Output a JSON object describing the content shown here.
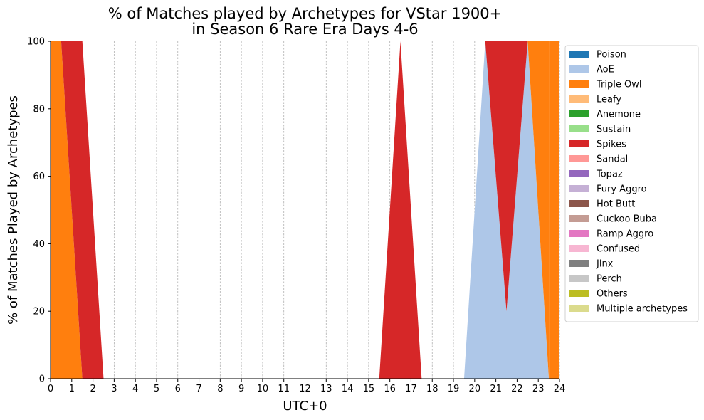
{
  "chart_data": {
    "type": "area",
    "stacked": true,
    "title": [
      "% of Matches played by Archetypes for VStar 1900+",
      "in Season 6 Rare Era Days 4-6"
    ],
    "xlabel": "UTC+0",
    "ylabel": "% of Matches Played by Archetypes",
    "xlim": [
      0,
      24
    ],
    "ylim": [
      0,
      100
    ],
    "x_ticks": [
      0,
      1,
      2,
      3,
      4,
      5,
      6,
      7,
      8,
      9,
      10,
      11,
      12,
      13,
      14,
      15,
      16,
      17,
      18,
      19,
      20,
      21,
      22,
      23,
      24
    ],
    "y_ticks": [
      0,
      20,
      40,
      60,
      80,
      100
    ],
    "grid": "vertical-dashed",
    "legend_position": "right",
    "x": [
      0.5,
      1.5,
      2.5,
      3.5,
      4.5,
      5.5,
      6.5,
      7.5,
      8.5,
      9.5,
      10.5,
      11.5,
      12.5,
      13.5,
      14.5,
      15.5,
      16.5,
      17.5,
      18.5,
      19.5,
      20.5,
      21.5,
      22.5,
      23.5
    ],
    "series": [
      {
        "name": "Poison",
        "color": "#1f77b4",
        "values": [
          0,
          0,
          0,
          0,
          0,
          0,
          0,
          0,
          0,
          0,
          0,
          0,
          0,
          0,
          0,
          0,
          0,
          0,
          0,
          0,
          0,
          0,
          0,
          0
        ]
      },
      {
        "name": "AoE",
        "color": "#aec7e8",
        "values": [
          0,
          0,
          0,
          0,
          0,
          0,
          0,
          0,
          0,
          0,
          0,
          0,
          0,
          0,
          0,
          0,
          0,
          0,
          0,
          0,
          100,
          20,
          100,
          0
        ]
      },
      {
        "name": "Triple Owl",
        "color": "#ff7f0e",
        "values": [
          100,
          0,
          0,
          0,
          0,
          0,
          0,
          0,
          0,
          0,
          0,
          0,
          0,
          0,
          0,
          0,
          0,
          0,
          0,
          0,
          0,
          0,
          0,
          100
        ]
      },
      {
        "name": "Leafy",
        "color": "#ffbb78",
        "values": [
          0,
          0,
          0,
          0,
          0,
          0,
          0,
          0,
          0,
          0,
          0,
          0,
          0,
          0,
          0,
          0,
          0,
          0,
          0,
          0,
          0,
          0,
          0,
          0
        ]
      },
      {
        "name": "Anemone",
        "color": "#2ca02c",
        "values": [
          0,
          0,
          0,
          0,
          0,
          0,
          0,
          0,
          0,
          0,
          0,
          0,
          0,
          0,
          0,
          0,
          0,
          0,
          0,
          0,
          0,
          0,
          0,
          0
        ]
      },
      {
        "name": "Sustain",
        "color": "#98df8a",
        "values": [
          0,
          0,
          0,
          0,
          0,
          0,
          0,
          0,
          0,
          0,
          0,
          0,
          0,
          0,
          0,
          0,
          0,
          0,
          0,
          0,
          0,
          0,
          0,
          0
        ]
      },
      {
        "name": "Spikes",
        "color": "#d62728",
        "values": [
          0,
          100,
          0,
          0,
          0,
          0,
          0,
          0,
          0,
          0,
          0,
          0,
          0,
          0,
          0,
          0,
          100,
          0,
          0,
          0,
          0,
          80,
          0,
          0
        ]
      },
      {
        "name": "Sandal",
        "color": "#ff9896",
        "values": [
          0,
          0,
          0,
          0,
          0,
          0,
          0,
          0,
          0,
          0,
          0,
          0,
          0,
          0,
          0,
          0,
          0,
          0,
          0,
          0,
          0,
          0,
          0,
          0
        ]
      },
      {
        "name": "Topaz",
        "color": "#9467bd",
        "values": [
          0,
          0,
          0,
          0,
          0,
          0,
          0,
          0,
          0,
          0,
          0,
          0,
          0,
          0,
          0,
          0,
          0,
          0,
          0,
          0,
          0,
          0,
          0,
          0
        ]
      },
      {
        "name": "Fury Aggro",
        "color": "#c5b0d5",
        "values": [
          0,
          0,
          0,
          0,
          0,
          0,
          0,
          0,
          0,
          0,
          0,
          0,
          0,
          0,
          0,
          0,
          0,
          0,
          0,
          0,
          0,
          0,
          0,
          0
        ]
      },
      {
        "name": "Hot Butt",
        "color": "#8c564b",
        "values": [
          0,
          0,
          0,
          0,
          0,
          0,
          0,
          0,
          0,
          0,
          0,
          0,
          0,
          0,
          0,
          0,
          0,
          0,
          0,
          0,
          0,
          0,
          0,
          0
        ]
      },
      {
        "name": "Cuckoo Buba",
        "color": "#c49c94",
        "values": [
          0,
          0,
          0,
          0,
          0,
          0,
          0,
          0,
          0,
          0,
          0,
          0,
          0,
          0,
          0,
          0,
          0,
          0,
          0,
          0,
          0,
          0,
          0,
          0
        ]
      },
      {
        "name": "Ramp Aggro",
        "color": "#e377c2",
        "values": [
          0,
          0,
          0,
          0,
          0,
          0,
          0,
          0,
          0,
          0,
          0,
          0,
          0,
          0,
          0,
          0,
          0,
          0,
          0,
          0,
          0,
          0,
          0,
          0
        ]
      },
      {
        "name": "Confused",
        "color": "#f7b6d2",
        "values": [
          0,
          0,
          0,
          0,
          0,
          0,
          0,
          0,
          0,
          0,
          0,
          0,
          0,
          0,
          0,
          0,
          0,
          0,
          0,
          0,
          0,
          0,
          0,
          0
        ]
      },
      {
        "name": "Jinx",
        "color": "#7f7f7f",
        "values": [
          0,
          0,
          0,
          0,
          0,
          0,
          0,
          0,
          0,
          0,
          0,
          0,
          0,
          0,
          0,
          0,
          0,
          0,
          0,
          0,
          0,
          0,
          0,
          0
        ]
      },
      {
        "name": "Perch",
        "color": "#c7c7c7",
        "values": [
          0,
          0,
          0,
          0,
          0,
          0,
          0,
          0,
          0,
          0,
          0,
          0,
          0,
          0,
          0,
          0,
          0,
          0,
          0,
          0,
          0,
          0,
          0,
          0
        ]
      },
      {
        "name": "Others",
        "color": "#bcbd22",
        "values": [
          0,
          0,
          0,
          0,
          0,
          0,
          0,
          0,
          0,
          0,
          0,
          0,
          0,
          0,
          0,
          0,
          0,
          0,
          0,
          0,
          0,
          0,
          0,
          0
        ]
      },
      {
        "name": "Multiple archetypes",
        "color": "#dbdb8d",
        "values": [
          0,
          0,
          0,
          0,
          0,
          0,
          0,
          0,
          0,
          0,
          0,
          0,
          0,
          0,
          0,
          0,
          0,
          0,
          0,
          0,
          0,
          0,
          0,
          0
        ]
      }
    ]
  }
}
